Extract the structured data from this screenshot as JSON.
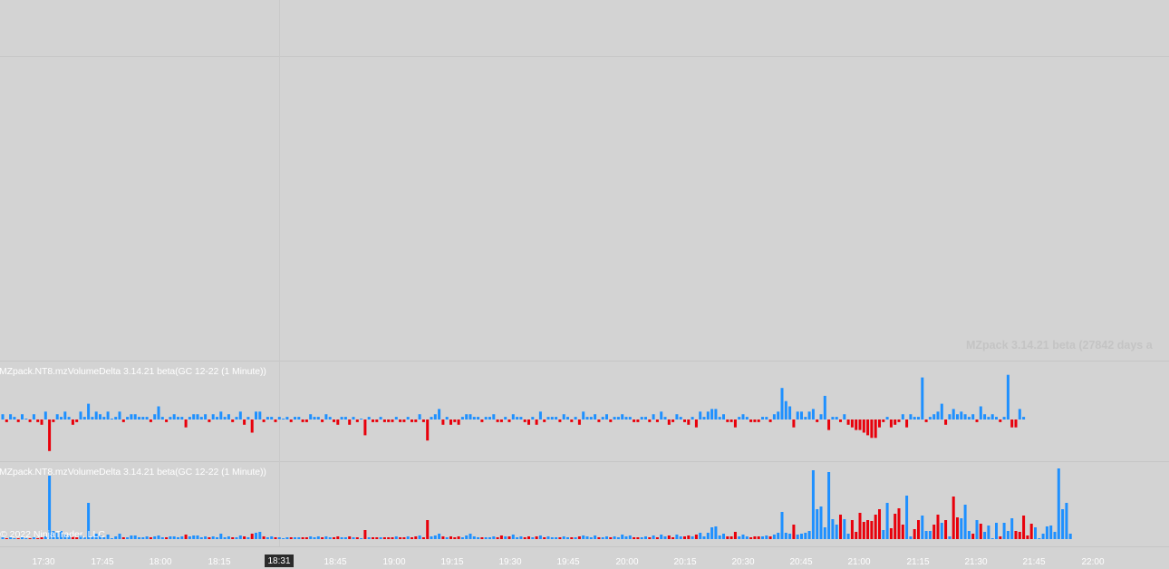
{
  "watermark": "MZpack 3.14.21 beta  (27842 days a",
  "copyright": "© 2022 NinjaTrader, LLC",
  "cursor_time": "18:31",
  "panels": [
    {
      "label": "MZpack.NT8.mzVolumeDelta 3.14.21 beta(GC 12-22 (1 Minute))"
    },
    {
      "label": "MZpack.NT8.mzVolumeDelta 3.14.21 beta(GC 12-22 (1 Minute))"
    }
  ],
  "colors": {
    "buy": "#1e90ff",
    "sell": "#e8000b",
    "background": "#d3d3d3"
  },
  "chart_data": [
    {
      "type": "bar",
      "title": "MZpack.NT8.mzVolumeDelta 3.14.21 beta(GC 12-22 (1 Minute))",
      "x_ticks": [
        "17:30",
        "17:45",
        "18:00",
        "18:15",
        "18:31",
        "18:45",
        "19:00",
        "19:15",
        "19:30",
        "19:45",
        "20:00",
        "20:15",
        "20:30",
        "20:45",
        "21:00",
        "21:15",
        "21:30",
        "21:45",
        "22:00"
      ],
      "description_values": "volume delta per 1-minute bar, relative units",
      "values": [
        2,
        -1,
        2,
        1,
        -1,
        2,
        0,
        -1,
        2,
        -1,
        -2,
        3,
        -12,
        -1,
        2,
        1,
        3,
        1,
        -2,
        -1,
        3,
        1,
        6,
        1,
        3,
        2,
        1,
        3,
        0,
        1,
        3,
        -1,
        1,
        2,
        2,
        1,
        1,
        1,
        -1,
        2,
        5,
        1,
        -1,
        1,
        2,
        1,
        1,
        -3,
        1,
        2,
        2,
        1,
        2,
        -1,
        2,
        1,
        3,
        1,
        2,
        -1,
        1,
        3,
        -2,
        1,
        -5,
        3,
        3,
        -1,
        1,
        1,
        -1,
        1,
        0,
        1,
        -1,
        1,
        1,
        -1,
        -1,
        2,
        1,
        1,
        -1,
        2,
        1,
        -1,
        -2,
        1,
        1,
        -2,
        1,
        -1,
        0,
        -6,
        1,
        -1,
        -1,
        1,
        -1,
        -1,
        -1,
        1,
        -1,
        -1,
        1,
        -1,
        -1,
        2,
        -1,
        -8,
        1,
        2,
        4,
        -2,
        1,
        -2,
        -1,
        -2,
        1,
        2,
        2,
        1,
        1,
        -1,
        1,
        1,
        2,
        -1,
        -1,
        1,
        -1,
        2,
        1,
        1,
        -1,
        -2,
        1,
        -2,
        3,
        -1,
        1,
        1,
        1,
        -1,
        2,
        1,
        -1,
        1,
        -2,
        3,
        1,
        1,
        2,
        -1,
        1,
        2,
        -1,
        1,
        1,
        2,
        1,
        1,
        -1,
        -1,
        1,
        1,
        -1,
        2,
        -1,
        3,
        1,
        -2,
        -1,
        2,
        1,
        -1,
        -2,
        1,
        -3,
        3,
        1,
        3,
        4,
        4,
        1,
        2,
        -1,
        -1,
        -3,
        1,
        2,
        1,
        -1,
        -1,
        -1,
        1,
        1,
        -1,
        2,
        3,
        12,
        7,
        5,
        -3,
        3,
        3,
        1,
        3,
        4,
        -1,
        2,
        9,
        -4,
        1,
        1,
        -1,
        2,
        -2,
        -3,
        -4,
        -4,
        -5,
        -6,
        -7,
        -7,
        -3,
        -1,
        1,
        -3,
        -2,
        -1,
        2,
        -3,
        2,
        1,
        1,
        16,
        -1,
        1,
        2,
        3,
        6,
        -2,
        2,
        4,
        2,
        3,
        2,
        1,
        2,
        -1,
        5,
        2,
        1,
        2,
        1,
        -1,
        1,
        17,
        -3,
        -3,
        4,
        1
      ]
    },
    {
      "type": "bar",
      "title": "MZpack.NT8.mzVolumeDelta 3.14.21 beta(GC 12-22 (1 Minute))",
      "x_ticks": [
        "17:30",
        "17:45",
        "18:00",
        "18:15",
        "18:31",
        "18:45",
        "19:00",
        "19:15",
        "19:30",
        "19:45",
        "20:00",
        "20:15",
        "20:30",
        "20:45",
        "21:00",
        "21:15",
        "21:30",
        "21:45",
        "22:00"
      ],
      "values": [
        2,
        -1,
        2,
        1,
        -1,
        2,
        1,
        -1,
        2,
        -1,
        -2,
        3,
        70,
        9,
        7,
        9,
        5,
        4,
        -3,
        -2,
        4,
        2,
        40,
        3,
        6,
        4,
        2,
        5,
        1,
        3,
        6,
        -2,
        2,
        4,
        4,
        2,
        2,
        3,
        -2,
        3,
        4,
        2,
        -2,
        3,
        3,
        2,
        3,
        -5,
        3,
        4,
        4,
        2,
        3,
        -2,
        3,
        2,
        6,
        2,
        3,
        -2,
        2,
        4,
        -3,
        2,
        -6,
        7,
        8,
        -3,
        2,
        3,
        -2,
        2,
        1,
        2,
        -2,
        2,
        2,
        -2,
        -2,
        3,
        2,
        3,
        -2,
        3,
        2,
        -2,
        -3,
        2,
        2,
        -3,
        2,
        -2,
        1,
        -10,
        2,
        -2,
        -2,
        2,
        -2,
        -2,
        -2,
        3,
        -2,
        -2,
        3,
        -2,
        -3,
        4,
        -2,
        -21,
        3,
        4,
        6,
        -3,
        2,
        -3,
        -2,
        -3,
        2,
        4,
        6,
        3,
        2,
        -2,
        2,
        2,
        3,
        -2,
        -4,
        3,
        -3,
        5,
        2,
        3,
        -2,
        -3,
        2,
        -3,
        4,
        -2,
        3,
        2,
        2,
        -2,
        3,
        2,
        -2,
        2,
        -3,
        4,
        3,
        2,
        4,
        -2,
        2,
        3,
        -2,
        3,
        2,
        5,
        3,
        4,
        -2,
        -2,
        2,
        3,
        -2,
        4,
        -2,
        5,
        3,
        -4,
        -2,
        5,
        3,
        -3,
        -4,
        3,
        -5,
        7,
        3,
        7,
        13,
        14,
        4,
        6,
        -3,
        -3,
        -8,
        3,
        5,
        3,
        -2,
        -3,
        -3,
        3,
        4,
        -3,
        5,
        7,
        30,
        7,
        6,
        -16,
        5,
        6,
        7,
        9,
        76,
        33,
        36,
        13,
        74,
        22,
        16,
        -27,
        22,
        6,
        -21,
        -8,
        -29,
        -19,
        -21,
        -20,
        -27,
        -33,
        10,
        40,
        -12,
        -28,
        -34,
        -16,
        48,
        3,
        -11,
        -21,
        26,
        9,
        9,
        -16,
        -27,
        18,
        -21,
        3,
        -47,
        -24,
        23,
        38,
        9,
        -6,
        21,
        -17,
        8,
        15,
        1,
        18,
        -3,
        18,
        9,
        23,
        -9,
        -8,
        -26,
        -4,
        -17,
        13,
        1,
        6,
        14,
        15,
        8,
        78,
        33,
        40,
        6
      ]
    }
  ]
}
